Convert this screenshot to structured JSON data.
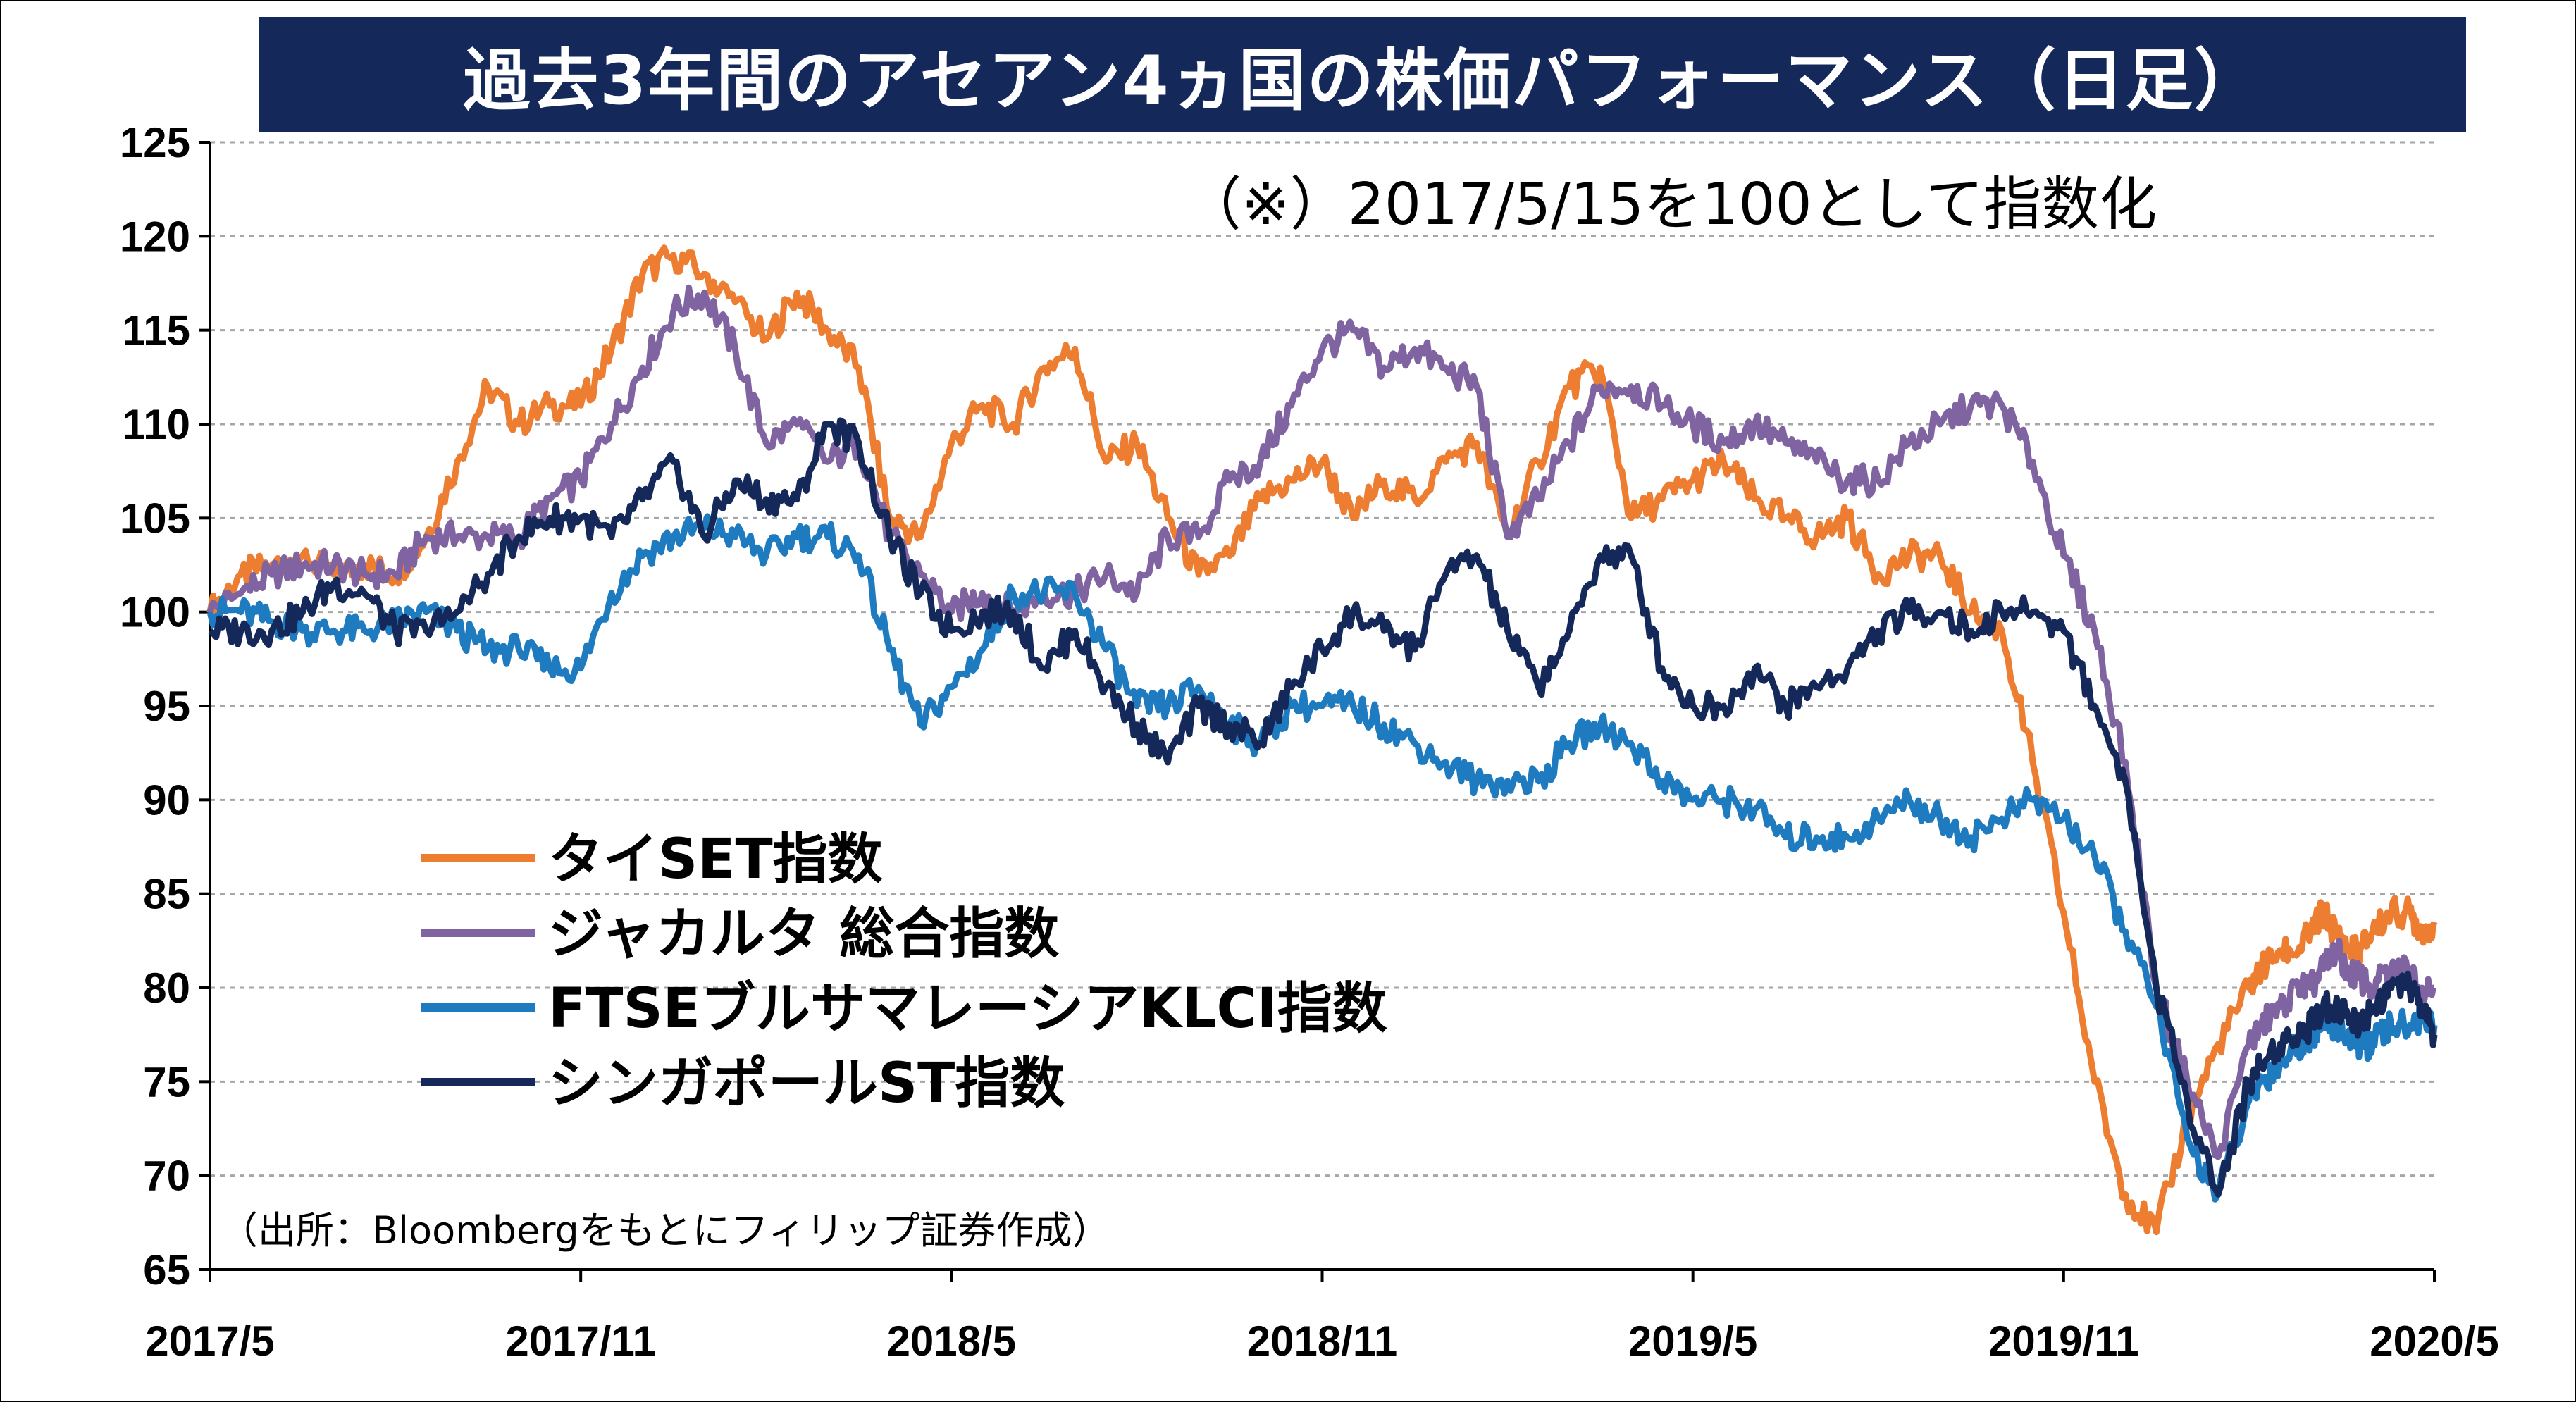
{
  "chart_data": {
    "type": "line",
    "title": "過去3年間のアセアン4ヵ国の株価パフォーマンス（日足）",
    "subtitle": "（※）2017/5/15を100として指数化",
    "source": "（出所：Bloombergをもとにフィリップ証券作成）",
    "x_tick_labels": [
      "2017/5",
      "2017/11",
      "2018/5",
      "2018/11",
      "2019/5",
      "2019/11",
      "2020/5"
    ],
    "ylim": [
      65,
      125
    ],
    "y_ticks": [
      65,
      70,
      75,
      80,
      85,
      90,
      95,
      100,
      105,
      110,
      115,
      120,
      125
    ],
    "grid": true,
    "legend_position": "bottom-left",
    "series": [
      {
        "name": "タイSET指数",
        "color": "#ed7d31",
        "x": [
          0,
          0.5,
          1,
          1.5,
          2,
          2.5,
          3,
          3.5,
          4,
          4.5,
          5,
          5.5,
          6,
          6.5,
          7,
          7.5,
          8,
          8.5,
          9,
          9.5,
          10,
          10.5,
          11,
          11.5,
          12,
          12.5,
          13,
          13.5,
          14,
          14.5,
          15,
          15.5,
          16,
          16.5,
          17,
          17.5,
          18,
          18.5,
          19,
          19.5,
          20,
          20.5,
          21,
          21.5,
          22,
          22.5,
          23,
          23.5,
          24,
          24.5,
          25,
          25.5,
          26,
          26.5,
          27,
          27.5,
          28,
          28.5,
          29,
          29.5,
          30,
          30.5,
          31,
          31.5,
          32,
          32.5,
          33,
          33.2,
          33.5,
          33.8,
          34,
          34.2,
          34.4,
          34.6,
          34.8,
          35,
          35.3,
          35.6,
          35.8,
          36
        ],
        "values": [
          100.0,
          102.0,
          102.5,
          103.0,
          102.0,
          102.5,
          102.0,
          104.0,
          108.0,
          112.0,
          110.0,
          111.0,
          111.0,
          114.0,
          118.0,
          119.0,
          118.0,
          116.5,
          114.5,
          117.0,
          115.0,
          113.0,
          105.0,
          104.0,
          109.0,
          111.0,
          110.0,
          113.0,
          114.0,
          108.0,
          109.0,
          105.0,
          102.0,
          103.0,
          106.0,
          107.0,
          108.0,
          105.0,
          107.0,
          106.0,
          108.0,
          109.0,
          104.0,
          108.0,
          112.0,
          113.0,
          105.0,
          106.0,
          107.0,
          108.0,
          106.0,
          105.0,
          104.0,
          105.0,
          102.0,
          103.0,
          103.0,
          100.0,
          99.0,
          92.0,
          84.0,
          75.0,
          69.0,
          67.0,
          73.0,
          77.0,
          80.0,
          81.0,
          82.0,
          82.0,
          83.0,
          84.0,
          83.0,
          82.0,
          82.0,
          83.0,
          84.0,
          84.0,
          83.0,
          83.5
        ]
      },
      {
        "name": "ジャカルタ 総合指数",
        "color": "#8064a2",
        "x": [
          0,
          0.5,
          1,
          1.5,
          2,
          2.5,
          3,
          3.5,
          4,
          4.5,
          5,
          5.5,
          6,
          6.5,
          7,
          7.5,
          8,
          8.5,
          9,
          9.5,
          10,
          10.5,
          11,
          11.5,
          12,
          12.5,
          13,
          13.5,
          14,
          14.5,
          15,
          15.5,
          16,
          16.5,
          17,
          17.5,
          18,
          18.5,
          19,
          19.5,
          20,
          20.5,
          21,
          21.5,
          22,
          22.5,
          23,
          23.5,
          24,
          24.5,
          25,
          25.5,
          26,
          26.5,
          27,
          27.5,
          28,
          28.5,
          29,
          29.5,
          30,
          30.5,
          31,
          31.5,
          32,
          32.5,
          33,
          33.2,
          33.5,
          33.8,
          34,
          34.2,
          34.4,
          34.6,
          34.8,
          35,
          35.3,
          35.6,
          35.8,
          36
        ],
        "values": [
          100.0,
          101.0,
          102.0,
          102.5,
          102.5,
          102.0,
          102.0,
          104.0,
          104.0,
          104.0,
          104.0,
          106.0,
          107.0,
          110.0,
          113.0,
          116.0,
          117.0,
          114.0,
          109.0,
          110.0,
          108.0,
          109.0,
          104.0,
          102.0,
          100.0,
          101.0,
          100.0,
          101.0,
          101.0,
          102.0,
          101.0,
          104.0,
          104.0,
          107.0,
          108.0,
          111.0,
          114.0,
          115.0,
          113.0,
          114.0,
          113.0,
          112.0,
          104.0,
          106.0,
          109.0,
          112.0,
          112.0,
          111.0,
          110.0,
          109.0,
          110.0,
          109.0,
          108.0,
          107.0,
          107.0,
          109.0,
          110.0,
          111.0,
          111.0,
          108.0,
          103.0,
          99.0,
          92.0,
          80.0,
          75.0,
          71.0,
          77.0,
          78.0,
          79.0,
          80.0,
          80.0,
          81.0,
          82.0,
          81.0,
          80.5,
          80.0,
          81.0,
          81.0,
          80.0,
          80.0
        ]
      },
      {
        "name": "FTSEブルサマレーシアKLCI指数",
        "color": "#1f7bc0",
        "x": [
          0,
          0.5,
          1,
          1.5,
          2,
          2.5,
          3,
          3.5,
          4,
          4.5,
          5,
          5.5,
          6,
          6.5,
          7,
          7.5,
          8,
          8.5,
          9,
          9.5,
          10,
          10.5,
          11,
          11.5,
          12,
          12.5,
          13,
          13.5,
          14,
          14.5,
          15,
          15.5,
          16,
          16.5,
          17,
          17.5,
          18,
          18.5,
          19,
          19.5,
          20,
          20.5,
          21,
          21.5,
          22,
          22.5,
          23,
          23.5,
          24,
          24.5,
          25,
          25.5,
          26,
          26.5,
          27,
          27.5,
          28,
          28.5,
          29,
          29.5,
          30,
          30.5,
          31,
          31.5,
          32,
          32.5,
          33,
          33.2,
          33.5,
          33.8,
          34,
          34.2,
          34.4,
          34.6,
          34.8,
          35,
          35.3,
          35.6,
          35.8,
          36
        ],
        "values": [
          100.0,
          100.0,
          99.5,
          99.0,
          99.0,
          99.0,
          99.5,
          100.0,
          99.0,
          98.0,
          98.0,
          97.0,
          97.0,
          101.0,
          103.0,
          104.0,
          104.5,
          104.0,
          103.0,
          104.0,
          104.0,
          103.0,
          98.0,
          94.0,
          96.0,
          98.0,
          101.0,
          101.0,
          101.0,
          98.0,
          95.0,
          95.0,
          96.0,
          94.0,
          93.0,
          95.0,
          95.0,
          95.0,
          94.0,
          93.0,
          92.0,
          91.0,
          91.0,
          91.0,
          93.0,
          94.0,
          93.0,
          91.0,
          90.0,
          90.0,
          89.5,
          88.0,
          88.0,
          88.0,
          89.0,
          90.0,
          89.0,
          88.0,
          89.0,
          90.0,
          89.0,
          87.0,
          83.0,
          79.0,
          72.0,
          69.0,
          74.0,
          75.0,
          76.0,
          77.0,
          77.5,
          78.0,
          78.0,
          77.5,
          77.0,
          77.0,
          78.0,
          78.0,
          78.5,
          78.0
        ]
      },
      {
        "name": "シンガポールST指数",
        "color": "#14285a",
        "x": [
          0,
          0.5,
          1,
          1.5,
          2,
          2.5,
          3,
          3.5,
          4,
          4.5,
          5,
          5.5,
          6,
          6.5,
          7,
          7.5,
          8,
          8.5,
          9,
          9.5,
          10,
          10.5,
          11,
          11.5,
          12,
          12.5,
          13,
          13.5,
          14,
          14.5,
          15,
          15.5,
          16,
          16.5,
          17,
          17.5,
          18,
          18.5,
          19,
          19.5,
          20,
          20.5,
          21,
          21.5,
          22,
          22.5,
          23,
          23.5,
          24,
          24.5,
          25,
          25.5,
          26,
          26.5,
          27,
          27.5,
          28,
          28.5,
          29,
          29.5,
          30,
          30.5,
          31,
          31.5,
          32,
          32.5,
          33,
          33.2,
          33.5,
          33.8,
          34,
          34.2,
          34.4,
          34.6,
          34.8,
          35,
          35.3,
          35.6,
          35.8,
          36
        ],
        "values": [
          99.0,
          99.0,
          99.0,
          100.0,
          101.5,
          101.0,
          99.0,
          99.0,
          100.0,
          102.0,
          104.0,
          105.0,
          105.0,
          104.0,
          106.0,
          108.0,
          104.0,
          107.0,
          106.0,
          106.0,
          110.0,
          109.0,
          104.0,
          101.0,
          99.0,
          100.0,
          100.0,
          97.0,
          99.0,
          96.0,
          94.0,
          92.0,
          95.0,
          94.0,
          93.0,
          96.0,
          98.0,
          100.0,
          99.0,
          98.0,
          102.0,
          103.0,
          99.0,
          96.0,
          99.0,
          103.0,
          103.0,
          97.0,
          95.0,
          95.0,
          97.0,
          95.0,
          96.0,
          97.0,
          99.0,
          100.0,
          100.0,
          99.0,
          100.0,
          100.0,
          99.0,
          95.0,
          91.0,
          80.0,
          74.0,
          69.0,
          75.0,
          76.0,
          77.0,
          77.5,
          78.0,
          79.0,
          79.0,
          78.5,
          78.0,
          79.0,
          80.0,
          80.0,
          79.0,
          77.5
        ]
      }
    ]
  }
}
